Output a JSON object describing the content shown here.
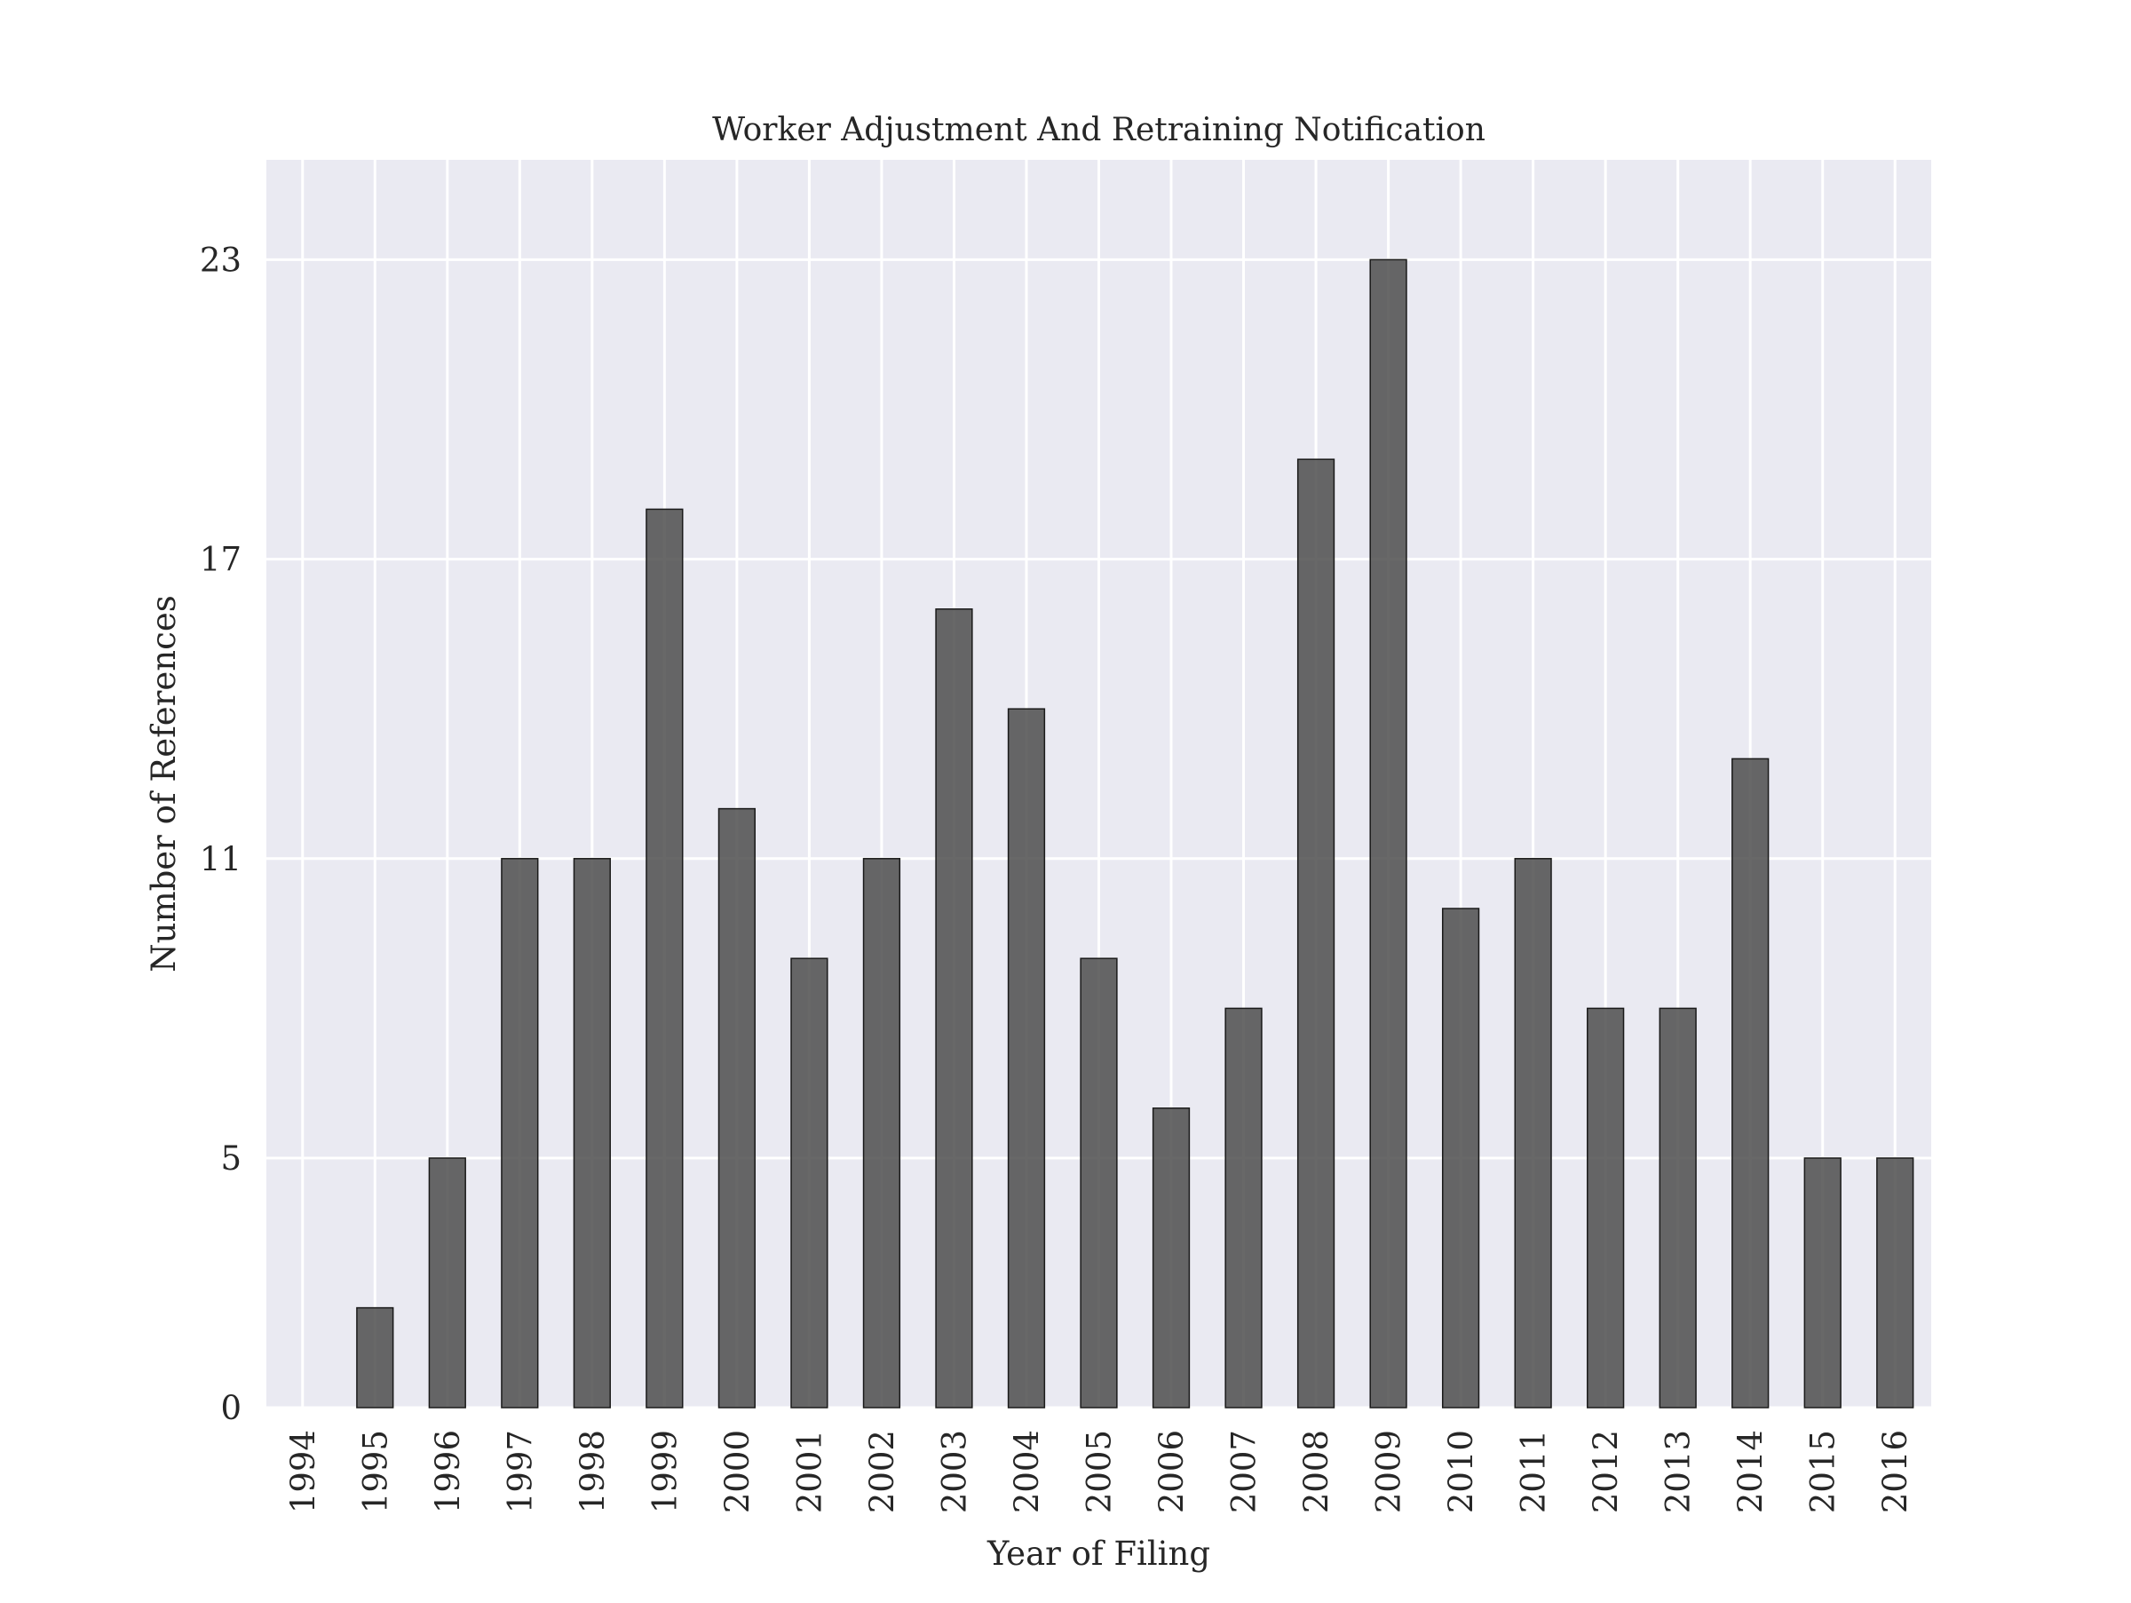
{
  "chart_data": {
    "type": "bar",
    "title": "Worker Adjustment And Retraining Notification",
    "xlabel": "Year of Filing",
    "ylabel": "Number of References",
    "categories": [
      "1994",
      "1995",
      "1996",
      "1997",
      "1998",
      "1999",
      "2000",
      "2001",
      "2002",
      "2003",
      "2004",
      "2005",
      "2006",
      "2007",
      "2008",
      "2009",
      "2010",
      "2011",
      "2012",
      "2013",
      "2014",
      "2015",
      "2016"
    ],
    "values": [
      0,
      2,
      5,
      11,
      11,
      18,
      12,
      9,
      11,
      16,
      14,
      9,
      6,
      8,
      19,
      23,
      10,
      11,
      8,
      8,
      13,
      5,
      5
    ],
    "yticks": [
      0,
      5,
      11,
      17,
      23
    ],
    "ylim": [
      0,
      25
    ],
    "grid": true,
    "bar_color": "#4d4d4d",
    "background_color": "#eaeaf2",
    "grid_color": "#ffffff"
  }
}
